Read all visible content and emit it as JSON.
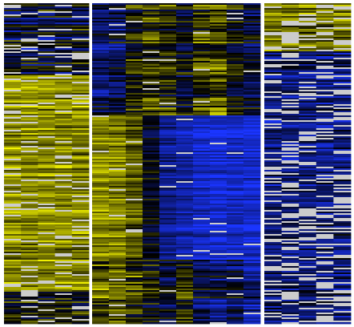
{
  "chart_data": [
    {
      "type": "heatmap",
      "panel": "left",
      "rows": 200,
      "columns": 5,
      "title": "",
      "xlabel": "",
      "ylabel": "",
      "value_range": [
        -1,
        1
      ],
      "colormap": {
        "negative": "#1a35ff",
        "zero": "#000000",
        "positive": "#ffff00",
        "missing": "#cccccc"
      },
      "missing_fraction": 0.12,
      "row_profile": [
        {
          "rows": [
            0,
            45
          ],
          "mean": -0.2,
          "noise": 0.6
        },
        {
          "rows": [
            45,
            180
          ],
          "mean": 0.55,
          "noise": 0.35
        },
        {
          "rows": [
            180,
            200
          ],
          "mean": 0.0,
          "noise": 0.6
        }
      ],
      "column_profile": []
    },
    {
      "type": "heatmap",
      "panel": "middle",
      "rows": 200,
      "columns": 10,
      "title": "",
      "xlabel": "",
      "ylabel": "",
      "value_range": [
        -1,
        1
      ],
      "colormap": {
        "negative": "#1a35ff",
        "zero": "#000000",
        "positive": "#ffff00",
        "missing": "#cccccc"
      },
      "missing_fraction": 0.03,
      "row_profile": [
        {
          "rows": [
            0,
            70
          ],
          "mean": 0.0,
          "noise": 0.5
        },
        {
          "rows": [
            70,
            160
          ],
          "mean": 0.0,
          "noise": 0.3
        },
        {
          "rows": [
            160,
            200
          ],
          "mean": 0.1,
          "noise": 0.5
        }
      ],
      "column_profile": [
        {
          "rows": [
            0,
            70
          ],
          "values": [
            -0.4,
            -0.3,
            0.1,
            0.2,
            0.1,
            -0.1,
            0.2,
            0.3,
            0.0,
            -0.2
          ]
        },
        {
          "rows": [
            70,
            160
          ],
          "values": [
            0.55,
            0.5,
            0.35,
            -0.1,
            -0.55,
            -0.65,
            -0.75,
            -0.8,
            -0.75,
            -0.8
          ]
        },
        {
          "rows": [
            160,
            200
          ],
          "values": [
            0.3,
            0.35,
            0.2,
            0.0,
            -0.2,
            0.1,
            -0.3,
            -0.4,
            -0.3,
            -0.5
          ]
        }
      ]
    },
    {
      "type": "heatmap",
      "panel": "right",
      "rows": 200,
      "columns": 5,
      "title": "",
      "xlabel": "",
      "ylabel": "",
      "value_range": [
        -1,
        1
      ],
      "colormap": {
        "negative": "#1a35ff",
        "zero": "#000000",
        "positive": "#ffff00",
        "missing": "#cccccc"
      },
      "missing_fraction": 0.28,
      "row_profile": [
        {
          "rows": [
            0,
            30
          ],
          "mean": 0.45,
          "noise": 0.45
        },
        {
          "rows": [
            30,
            200
          ],
          "mean": -0.45,
          "noise": 0.45
        }
      ],
      "column_profile": []
    }
  ]
}
